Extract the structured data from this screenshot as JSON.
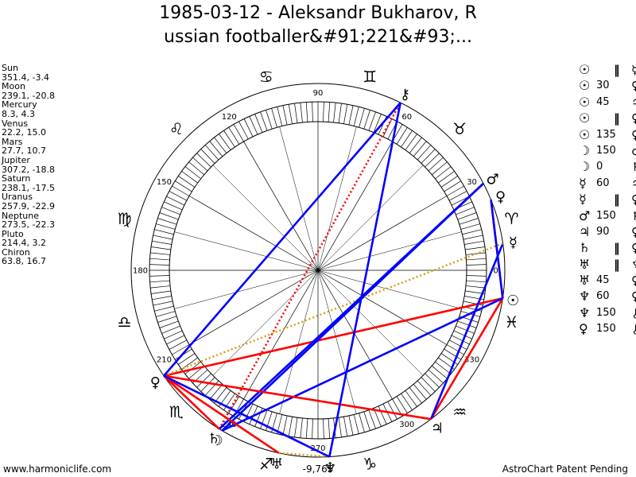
{
  "title": {
    "line1": "1985-03-12 - Aleksandr Bukharov, R",
    "line2": "ussian footballer&#91;221&#93;..."
  },
  "planets": [
    {
      "name": "Sun",
      "coords": "351.4, -3.4"
    },
    {
      "name": "Moon",
      "coords": "239.1, -20.8"
    },
    {
      "name": "Mercury",
      "coords": "8.3, 4.3"
    },
    {
      "name": "Venus",
      "coords": "22.2, 15.0"
    },
    {
      "name": "Mars",
      "coords": "27.7, 10.7"
    },
    {
      "name": "Jupiter",
      "coords": "307.2, -18.8"
    },
    {
      "name": "Saturn",
      "coords": "238.1, -17.5"
    },
    {
      "name": "Uranus",
      "coords": "257.9, -22.9"
    },
    {
      "name": "Neptune",
      "coords": "273.5, -22.3"
    },
    {
      "name": "Pluto",
      "coords": "214.4, 3.2"
    },
    {
      "name": "Chiron",
      "coords": "63.8, 16.7"
    }
  ],
  "aspects": [
    {
      "p1": "☉",
      "angle": "",
      "sym": "‖",
      "p2": "☿"
    },
    {
      "p1": "☉",
      "angle": "30",
      "sym": "",
      "p2": "♀"
    },
    {
      "p1": "☉",
      "angle": "45",
      "sym": "",
      "p2": "♃"
    },
    {
      "p1": "☉",
      "angle": "",
      "sym": "‖",
      "p2": "♀"
    },
    {
      "p1": "☉",
      "angle": "135",
      "sym": "",
      "p2": "♀"
    },
    {
      "p1": "☽",
      "angle": "150",
      "sym": "",
      "p2": "♂"
    },
    {
      "p1": "☽",
      "angle": "0",
      "sym": "",
      "p2": "♄"
    },
    {
      "p1": "☿",
      "angle": "60",
      "sym": "",
      "p2": "♃"
    },
    {
      "p1": "☿",
      "angle": "",
      "sym": "‖",
      "p2": "♀"
    },
    {
      "p1": "♂",
      "angle": "150",
      "sym": "",
      "p2": "♄"
    },
    {
      "p1": "♃",
      "angle": "90",
      "sym": "",
      "p2": "♀"
    },
    {
      "p1": "♄",
      "angle": "",
      "sym": "‖",
      "p2": "♀"
    },
    {
      "p1": "♅",
      "angle": "",
      "sym": "‖",
      "p2": "♆"
    },
    {
      "p1": "♅",
      "angle": "45",
      "sym": "",
      "p2": "♀"
    },
    {
      "p1": "♆",
      "angle": "60",
      "sym": "",
      "p2": "♀"
    },
    {
      "p1": "♆",
      "angle": "150",
      "sym": "",
      "p2": "⚷"
    },
    {
      "p1": "♀",
      "angle": "150",
      "sym": "",
      "p2": "⚷"
    }
  ],
  "wheel": {
    "degree_labels": [
      {
        "deg": 0,
        "text": "0"
      },
      {
        "deg": 30,
        "text": "30"
      },
      {
        "deg": 60,
        "text": "60"
      },
      {
        "deg": 90,
        "text": "90"
      },
      {
        "deg": 120,
        "text": "120"
      },
      {
        "deg": 150,
        "text": "150"
      },
      {
        "deg": 180,
        "text": "180"
      },
      {
        "deg": 210,
        "text": "210"
      },
      {
        "deg": 240,
        "text": "240"
      },
      {
        "deg": 270,
        "text": "270"
      },
      {
        "deg": 300,
        "text": "300"
      },
      {
        "deg": 330,
        "text": "330"
      }
    ],
    "zodiac": [
      {
        "deg": 15,
        "glyph": "♈"
      },
      {
        "deg": 45,
        "glyph": "♉"
      },
      {
        "deg": 75,
        "glyph": "♊"
      },
      {
        "deg": 105,
        "glyph": "♋"
      },
      {
        "deg": 135,
        "glyph": "♌"
      },
      {
        "deg": 165,
        "glyph": "♍"
      },
      {
        "deg": 195,
        "glyph": "♎"
      },
      {
        "deg": 225,
        "glyph": "♏"
      },
      {
        "deg": 255,
        "glyph": "♐"
      },
      {
        "deg": 285,
        "glyph": "♑"
      },
      {
        "deg": 315,
        "glyph": "♒"
      },
      {
        "deg": 345,
        "glyph": "♓"
      }
    ],
    "bodies": [
      {
        "name": "Sun",
        "glyph": "☉",
        "deg": 351.4
      },
      {
        "name": "Moon",
        "glyph": "☽",
        "deg": 239.1
      },
      {
        "name": "Mercury",
        "glyph": "☿",
        "deg": 8.3
      },
      {
        "name": "Venus",
        "glyph": "♀",
        "deg": 22.2
      },
      {
        "name": "Mars",
        "glyph": "♂",
        "deg": 27.7
      },
      {
        "name": "Jupiter",
        "glyph": "♃",
        "deg": 307.2
      },
      {
        "name": "Saturn",
        "glyph": "♄",
        "deg": 238.1
      },
      {
        "name": "Uranus",
        "glyph": "♅",
        "deg": 257.9
      },
      {
        "name": "Neptune",
        "glyph": "♆",
        "deg": 273.5
      },
      {
        "name": "Pluto",
        "glyph": "♀",
        "deg": 214.4
      },
      {
        "name": "Chiron",
        "glyph": "⚷",
        "deg": 63.8
      }
    ],
    "bottom_label": "-9,765",
    "aspect_lines": [
      {
        "a": 351.4,
        "b": 214.4,
        "color": "#ff0000",
        "style": "solid"
      },
      {
        "a": 351.4,
        "b": 307.2,
        "color": "#ff0000",
        "style": "solid"
      },
      {
        "a": 351.4,
        "b": 239.1,
        "color": "#0000ff",
        "style": "solid"
      },
      {
        "a": 351.4,
        "b": 22.2,
        "color": "#ff0000",
        "style": "solid"
      },
      {
        "a": 239.1,
        "b": 27.7,
        "color": "#0000ff",
        "style": "solid"
      },
      {
        "a": 238.1,
        "b": 63.8,
        "color": "#ff0000",
        "style": "dotted"
      },
      {
        "a": 8.3,
        "b": 307.2,
        "color": "#0000ff",
        "style": "solid"
      },
      {
        "a": 8.3,
        "b": 214.4,
        "color": "#d4a017",
        "style": "dotted"
      },
      {
        "a": 27.7,
        "b": 238.1,
        "color": "#0000ff",
        "style": "solid"
      },
      {
        "a": 307.2,
        "b": 214.4,
        "color": "#ff0000",
        "style": "solid"
      },
      {
        "a": 238.1,
        "b": 214.4,
        "color": "#ff0000",
        "style": "solid"
      },
      {
        "a": 257.9,
        "b": 273.5,
        "color": "#d4a017",
        "style": "dotted"
      },
      {
        "a": 257.9,
        "b": 214.4,
        "color": "#ff0000",
        "style": "solid"
      },
      {
        "a": 273.5,
        "b": 63.8,
        "color": "#0000ff",
        "style": "solid"
      },
      {
        "a": 273.5,
        "b": 214.4,
        "color": "#0000ff",
        "style": "solid"
      },
      {
        "a": 214.4,
        "b": 63.8,
        "color": "#0000ff",
        "style": "solid"
      },
      {
        "a": 22.2,
        "b": 351.4,
        "color": "#0000ff",
        "style": "solid"
      }
    ]
  },
  "footer": {
    "left": "www.harmoniclife.com",
    "right": "AstroChart Patent Pending"
  }
}
